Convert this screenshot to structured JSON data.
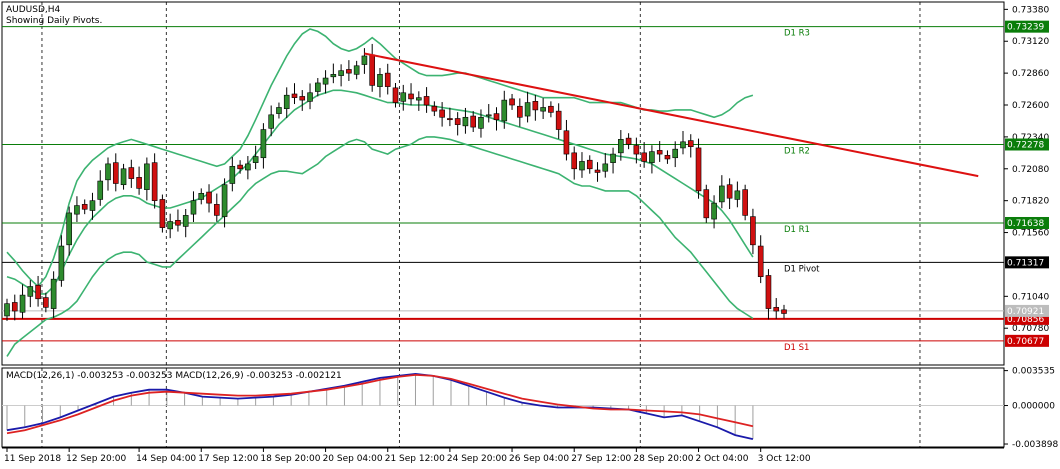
{
  "chart_data": {
    "type": "candlestick",
    "symbol_title": "AUDUSD,H4",
    "subtitle": "Showing Daily Pivots.",
    "price_axis_ticks": [
      "0.73380",
      "0.73120",
      "0.72860",
      "0.72600",
      "0.72340",
      "0.72080",
      "0.71820",
      "0.71560",
      "0.71040",
      "0.70780"
    ],
    "ylim": [
      0.7048,
      0.7344
    ],
    "pivots": [
      {
        "name": "D1 R3",
        "value": 0.73239,
        "label": "0.73239",
        "color": "#0a7d0a"
      },
      {
        "name": "D1 R2",
        "value": 0.72278,
        "label": "0.72278",
        "color": "#0a7d0a"
      },
      {
        "name": "D1 R1",
        "value": 0.71638,
        "label": "0.71638",
        "color": "#0a7d0a"
      },
      {
        "name": "D1 Pivot",
        "value": 0.71317,
        "label": "0.71317",
        "color": "#000000"
      },
      {
        "name": "D1 S1",
        "value": 0.70677,
        "label": "0.70677",
        "color": "#cc0000"
      }
    ],
    "current_price": {
      "value": 0.70921,
      "label": "0.70921"
    },
    "support_line": {
      "value": 0.70856,
      "label": "0.70856",
      "color": "#cc0000"
    },
    "trendline": {
      "start_index": 46,
      "start_value": 0.7302,
      "end_index": 125,
      "end_value": 0.7202,
      "color": "#dd1111"
    },
    "time_labels": [
      {
        "index": 0,
        "label": "11 Sep 2018"
      },
      {
        "index": 8,
        "label": "12 Sep 20:00"
      },
      {
        "index": 17,
        "label": "14 Sep 04:00"
      },
      {
        "index": 25,
        "label": "17 Sep 12:00"
      },
      {
        "index": 33,
        "label": "18 Sep 20:00"
      },
      {
        "index": 41,
        "label": "20 Sep 04:00"
      },
      {
        "index": 49,
        "label": "21 Sep 12:00"
      },
      {
        "index": 57,
        "label": "24 Sep 20:00"
      },
      {
        "index": 65,
        "label": "26 Sep 04:00"
      },
      {
        "index": 73,
        "label": "27 Sep 12:00"
      },
      {
        "index": 81,
        "label": "28 Sep 20:00"
      },
      {
        "index": 89,
        "label": "2 Oct 04:00"
      },
      {
        "index": 97,
        "label": "3 Oct 12:00"
      }
    ],
    "separator_indices": [
      4.5,
      20.5,
      50.5,
      81.5,
      117.5
    ],
    "closes": [
      0.7098,
      0.7092,
      0.7105,
      0.7112,
      0.7102,
      0.7095,
      0.7118,
      0.7145,
      0.7172,
      0.7178,
      0.7175,
      0.7182,
      0.7198,
      0.7212,
      0.7196,
      0.7208,
      0.72,
      0.7192,
      0.7212,
      0.7182,
      0.716,
      0.7165,
      0.7162,
      0.717,
      0.7182,
      0.7188,
      0.718,
      0.717,
      0.7195,
      0.721,
      0.7208,
      0.7212,
      0.7218,
      0.724,
      0.7252,
      0.7258,
      0.7268,
      0.7266,
      0.7264,
      0.727,
      0.7278,
      0.7282,
      0.7285,
      0.7288,
      0.7286,
      0.7292,
      0.73,
      0.7276,
      0.7285,
      0.7275,
      0.7262,
      0.727,
      0.7265,
      0.7266,
      0.726,
      0.7255,
      0.725,
      0.7248,
      0.7244,
      0.725,
      0.7242,
      0.725,
      0.7252,
      0.7248,
      0.7264,
      0.726,
      0.725,
      0.7262,
      0.7256,
      0.7258,
      0.7254,
      0.724,
      0.722,
      0.7208,
      0.7214,
      0.7208,
      0.7205,
      0.7212,
      0.722,
      0.7232,
      0.7228,
      0.722,
      0.7214,
      0.7222,
      0.722,
      0.7216,
      0.7224,
      0.723,
      0.7226,
      0.719,
      0.7168,
      0.718,
      0.7194,
      0.7184,
      0.719,
      0.717,
      0.7146,
      0.712,
      0.7094,
      0.7092,
      0.709
    ],
    "opens": [
      0.7088,
      0.7099,
      0.7091,
      0.7104,
      0.7113,
      0.7103,
      0.7094,
      0.7117,
      0.7146,
      0.7171,
      0.7179,
      0.7174,
      0.7183,
      0.7199,
      0.7213,
      0.7195,
      0.7209,
      0.7201,
      0.7191,
      0.7213,
      0.7183,
      0.7159,
      0.7166,
      0.7161,
      0.7171,
      0.7183,
      0.7189,
      0.7179,
      0.7169,
      0.7196,
      0.7211,
      0.7207,
      0.7213,
      0.7217,
      0.7241,
      0.7253,
      0.7257,
      0.7269,
      0.7267,
      0.7263,
      0.7271,
      0.7277,
      0.7283,
      0.7284,
      0.7289,
      0.7285,
      0.7293,
      0.7301,
      0.7275,
      0.7286,
      0.7274,
      0.7263,
      0.7269,
      0.7264,
      0.7267,
      0.7259,
      0.7256,
      0.7249,
      0.7249,
      0.7243,
      0.7251,
      0.7241,
      0.7251,
      0.7253,
      0.7247,
      0.7265,
      0.7259,
      0.7251,
      0.7263,
      0.7255,
      0.7259,
      0.7255,
      0.7239,
      0.7221,
      0.7207,
      0.7215,
      0.7207,
      0.7206,
      0.7213,
      0.7221,
      0.7233,
      0.7227,
      0.7221,
      0.7213,
      0.7223,
      0.7219,
      0.7217,
      0.7225,
      0.7231,
      0.7225,
      0.7191,
      0.7167,
      0.7181,
      0.7195,
      0.7183,
      0.7191,
      0.7169,
      0.7145,
      0.7121,
      0.7095,
      0.7093
    ],
    "bollinger_upper": [
      0.714,
      0.7133,
      0.7125,
      0.7118,
      0.7112,
      0.712,
      0.7135,
      0.7155,
      0.718,
      0.7198,
      0.7208,
      0.7215,
      0.722,
      0.7225,
      0.7228,
      0.723,
      0.7232,
      0.723,
      0.7228,
      0.7226,
      0.7224,
      0.7222,
      0.722,
      0.7218,
      0.7216,
      0.7214,
      0.7212,
      0.721,
      0.7212,
      0.7218,
      0.7224,
      0.7235,
      0.7248,
      0.7262,
      0.7276,
      0.7288,
      0.73,
      0.731,
      0.7318,
      0.7322,
      0.732,
      0.7316,
      0.731,
      0.7306,
      0.7304,
      0.7306,
      0.731,
      0.7315,
      0.731,
      0.7304,
      0.7298,
      0.7294,
      0.729,
      0.7286,
      0.7284,
      0.7284,
      0.7284,
      0.7285,
      0.7286,
      0.7286,
      0.7284,
      0.7282,
      0.728,
      0.7278,
      0.7276,
      0.7274,
      0.7272,
      0.727,
      0.7268,
      0.7266,
      0.7266,
      0.7266,
      0.7266,
      0.7266,
      0.7264,
      0.7262,
      0.7262,
      0.7262,
      0.7262,
      0.7262,
      0.726,
      0.7258,
      0.7256,
      0.7256,
      0.7255,
      0.7255,
      0.7256,
      0.7256,
      0.7256,
      0.7254,
      0.7252,
      0.725,
      0.7252,
      0.7256,
      0.7262,
      0.7266,
      0.7268
    ],
    "bollinger_middle": [
      0.712,
      0.7118,
      0.7114,
      0.711,
      0.7106,
      0.7106,
      0.7112,
      0.7124,
      0.7138,
      0.715,
      0.716,
      0.7168,
      0.7174,
      0.718,
      0.7184,
      0.7186,
      0.7186,
      0.7184,
      0.718,
      0.7178,
      0.7176,
      0.7176,
      0.7178,
      0.718,
      0.7182,
      0.7184,
      0.7188,
      0.7192,
      0.7196,
      0.72,
      0.7206,
      0.7212,
      0.722,
      0.7228,
      0.7236,
      0.7244,
      0.725,
      0.7256,
      0.726,
      0.7264,
      0.7268,
      0.727,
      0.7272,
      0.7272,
      0.7271,
      0.727,
      0.7268,
      0.7266,
      0.7264,
      0.7262,
      0.7262,
      0.7261,
      0.726,
      0.726,
      0.726,
      0.7259,
      0.7258,
      0.7257,
      0.7256,
      0.7255,
      0.7254,
      0.7252,
      0.725,
      0.7248,
      0.7246,
      0.7244,
      0.7242,
      0.724,
      0.7238,
      0.7236,
      0.7234,
      0.7232,
      0.723,
      0.7228,
      0.7226,
      0.7224,
      0.7222,
      0.722,
      0.7219,
      0.7218,
      0.7217,
      0.7216,
      0.7214,
      0.7212,
      0.7208,
      0.7204,
      0.72,
      0.7196,
      0.7192,
      0.7188,
      0.7184,
      0.718,
      0.7174,
      0.7166,
      0.7156,
      0.7146,
      0.7136
    ],
    "bollinger_lower": [
      0.7055,
      0.7065,
      0.707,
      0.7075,
      0.708,
      0.7085,
      0.7087,
      0.709,
      0.7094,
      0.71,
      0.711,
      0.712,
      0.7128,
      0.7134,
      0.7138,
      0.714,
      0.714,
      0.7138,
      0.7132,
      0.713,
      0.7128,
      0.7128,
      0.7134,
      0.714,
      0.7146,
      0.7152,
      0.7158,
      0.7164,
      0.717,
      0.7176,
      0.7182,
      0.719,
      0.7196,
      0.72,
      0.7204,
      0.7206,
      0.7206,
      0.7205,
      0.7204,
      0.7208,
      0.7212,
      0.7218,
      0.7222,
      0.7226,
      0.723,
      0.7232,
      0.723,
      0.7224,
      0.7222,
      0.722,
      0.7224,
      0.7226,
      0.7228,
      0.7232,
      0.7234,
      0.7234,
      0.7233,
      0.7232,
      0.723,
      0.7228,
      0.7226,
      0.7224,
      0.7222,
      0.722,
      0.7218,
      0.7216,
      0.7214,
      0.7212,
      0.721,
      0.7208,
      0.7206,
      0.7204,
      0.72,
      0.7196,
      0.7194,
      0.7194,
      0.7192,
      0.719,
      0.719,
      0.719,
      0.719,
      0.7186,
      0.718,
      0.7174,
      0.7168,
      0.716,
      0.7152,
      0.7146,
      0.714,
      0.7132,
      0.7124,
      0.7116,
      0.7108,
      0.71,
      0.7094,
      0.709,
      0.7086
    ],
    "macd": {
      "title": "MACD(12,26,1) -0.003253 -0.003253 MACD(12,26,9) -0.003253 -0.002121",
      "ticks": [
        "0.003535",
        "0.000000",
        "-0.003898"
      ],
      "ylim": [
        -0.0042,
        0.0038
      ],
      "main": [
        -0.0025,
        -0.0022,
        -0.0018,
        -0.0012,
        -0.0005,
        0.0002,
        0.0009,
        0.0013,
        0.0016,
        0.0016,
        0.0013,
        0.0009,
        0.0008,
        0.0007,
        0.0008,
        0.0009,
        0.0011,
        0.0014,
        0.0017,
        0.002,
        0.0024,
        0.0028,
        0.003,
        0.0032,
        0.003,
        0.0026,
        0.002,
        0.0014,
        0.0008,
        0.0003,
        0.0,
        -0.0002,
        -0.0002,
        -0.0002,
        -0.0003,
        -0.0004,
        -0.0008,
        -0.0012,
        -0.001,
        -0.0016,
        -0.0022,
        -0.003,
        -0.0034
      ],
      "signal": [
        -0.0028,
        -0.0025,
        -0.002,
        -0.0015,
        -0.0009,
        -0.0002,
        0.0005,
        0.001,
        0.0013,
        0.0014,
        0.0013,
        0.0012,
        0.0011,
        0.001,
        0.001,
        0.0011,
        0.0012,
        0.0014,
        0.0016,
        0.0019,
        0.0022,
        0.0026,
        0.0029,
        0.0031,
        0.003,
        0.0027,
        0.0022,
        0.0017,
        0.0012,
        0.0007,
        0.0004,
        0.0001,
        -0.0001,
        -0.0003,
        -0.0004,
        -0.0004,
        -0.0005,
        -0.0006,
        -0.0007,
        -0.0009,
        -0.0013,
        -0.0017,
        -0.0021
      ]
    }
  }
}
